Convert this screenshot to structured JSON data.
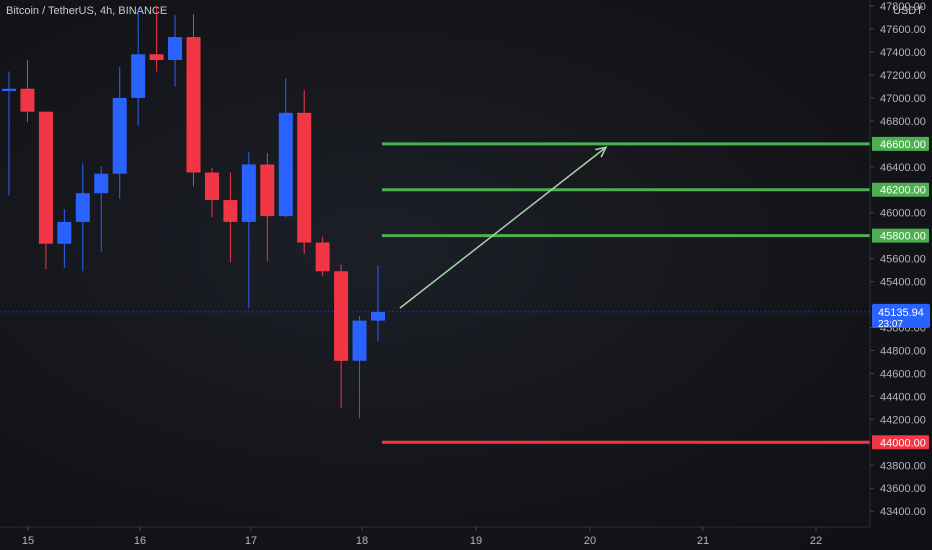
{
  "header": {
    "title": "Bitcoin / TetherUS, 4h, BINANCE",
    "currency": "USDT"
  },
  "colors": {
    "up": "#2962ff",
    "down": "#f23645",
    "target": "#4caf50",
    "stop": "#f23645",
    "arrow": "#a5d6a7",
    "background": "#131722",
    "axis_text": "#b2b5be"
  },
  "chart_data": {
    "type": "candlestick",
    "ylim": [
      43200,
      47800
    ],
    "y_ticks": [
      43400,
      43600,
      43800,
      44000,
      44200,
      44400,
      44600,
      44800,
      45000,
      45200,
      45400,
      45600,
      45800,
      46000,
      46200,
      46400,
      46600,
      46800,
      47000,
      47200,
      47400,
      47600,
      47800
    ],
    "x_ticks": [
      "15",
      "16",
      "17",
      "18",
      "19",
      "20",
      "21",
      "22"
    ],
    "candles": [
      {
        "o": 47060,
        "h": 47230,
        "l": 46150,
        "c": 47080
      },
      {
        "o": 47080,
        "h": 47330,
        "l": 46790,
        "c": 46880
      },
      {
        "o": 46880,
        "h": 46860,
        "l": 45510,
        "c": 45730
      },
      {
        "o": 45730,
        "h": 46030,
        "l": 45520,
        "c": 45920
      },
      {
        "o": 45920,
        "h": 46430,
        "l": 45490,
        "c": 46170
      },
      {
        "o": 46170,
        "h": 46400,
        "l": 45660,
        "c": 46340
      },
      {
        "o": 46340,
        "h": 47270,
        "l": 46120,
        "c": 47000
      },
      {
        "o": 47000,
        "h": 47780,
        "l": 46760,
        "c": 47380
      },
      {
        "o": 47380,
        "h": 47800,
        "l": 47230,
        "c": 47330
      },
      {
        "o": 47330,
        "h": 47720,
        "l": 47100,
        "c": 47530
      },
      {
        "o": 47530,
        "h": 47730,
        "l": 46230,
        "c": 46350
      },
      {
        "o": 46350,
        "h": 46390,
        "l": 45960,
        "c": 46110
      },
      {
        "o": 46110,
        "h": 46350,
        "l": 45570,
        "c": 45920
      },
      {
        "o": 45920,
        "h": 46530,
        "l": 45170,
        "c": 46420
      },
      {
        "o": 46420,
        "h": 46520,
        "l": 45580,
        "c": 45970
      },
      {
        "o": 45970,
        "h": 47170,
        "l": 45960,
        "c": 46870
      },
      {
        "o": 46870,
        "h": 47070,
        "l": 45640,
        "c": 45740
      },
      {
        "o": 45740,
        "h": 45790,
        "l": 45450,
        "c": 45490
      },
      {
        "o": 45490,
        "h": 45550,
        "l": 44300,
        "c": 44710
      },
      {
        "o": 44710,
        "h": 45100,
        "l": 44210,
        "c": 45060
      },
      {
        "o": 45060,
        "h": 45540,
        "l": 44880,
        "c": 45135
      }
    ],
    "horizontal_lines": [
      {
        "value": 46600,
        "label": "46600.00",
        "kind": "target"
      },
      {
        "value": 46200,
        "label": "46200.00",
        "kind": "target"
      },
      {
        "value": 45800,
        "label": "45800.00",
        "kind": "target"
      },
      {
        "value": 44000,
        "label": "44000.00",
        "kind": "stop"
      }
    ],
    "current_price": {
      "value": 45135.94,
      "label": "45135.94",
      "countdown": "23:07"
    },
    "projection_arrow": {
      "from_price": 45170,
      "to_price": 46570
    }
  }
}
